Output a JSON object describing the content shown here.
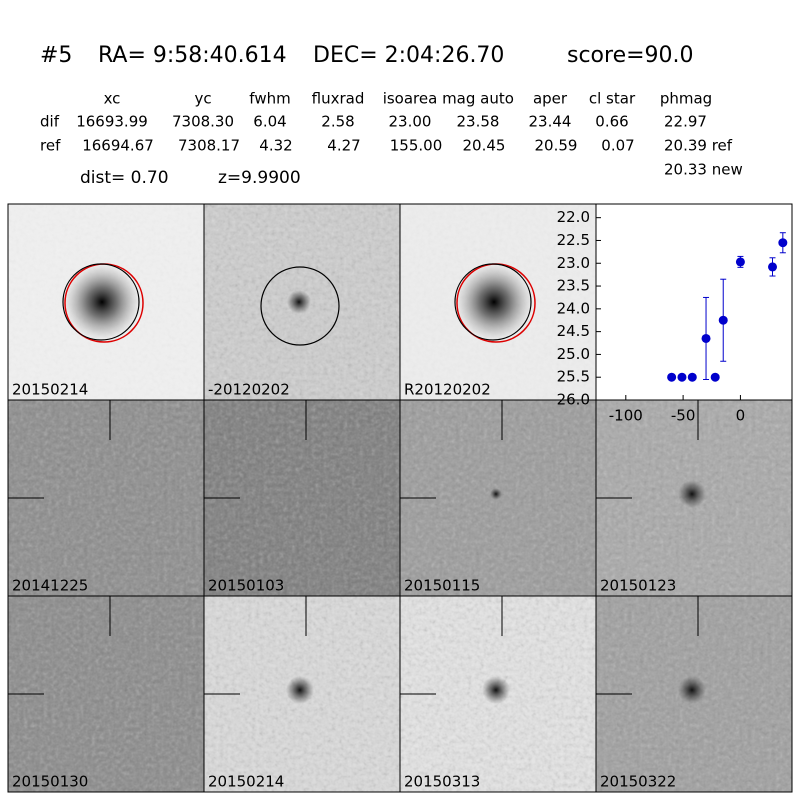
{
  "header": {
    "id": "#5",
    "ra": "RA= 9:58:40.614",
    "dec": "DEC= 2:04:26.70",
    "score": "score=90.0"
  },
  "table": {
    "columns": [
      "xc",
      "yc",
      "fwhm",
      "fluxrad",
      "isoarea",
      "mag auto",
      "aper",
      "cl star",
      "phmag"
    ],
    "rows": [
      [
        "dif",
        "16693.99",
        "7308.30",
        "6.04",
        "2.58",
        "23.00",
        "23.58",
        "23.44",
        "0.66",
        "22.97"
      ],
      [
        "ref",
        "16694.67",
        "7308.17",
        "4.32",
        "4.27",
        "155.00",
        "20.45",
        "20.59",
        "0.07",
        "20.39 ref"
      ]
    ],
    "extra": "20.33 new"
  },
  "dist": "dist=  0.70",
  "z": "z=9.9900",
  "panels": [
    {
      "label": "20150214"
    },
    {
      "label": "-20120202"
    },
    {
      "label": "R20120202"
    },
    {
      "label": "20141225"
    },
    {
      "label": "20150103"
    },
    {
      "label": "20150115"
    },
    {
      "label": "20150123"
    },
    {
      "label": "20150130"
    },
    {
      "label": "20150214",
      "color": "#ff0000"
    },
    {
      "label": "20150313"
    },
    {
      "label": "20150322"
    }
  ],
  "chart_data": {
    "type": "scatter",
    "color": "#0000cc",
    "y_inverted": true,
    "x": [
      -60,
      -51,
      -42,
      -30,
      -22,
      -15,
      0,
      28,
      37
    ],
    "values": [
      25.5,
      25.5,
      25.5,
      24.65,
      25.5,
      24.25,
      22.97,
      23.08,
      22.55
    ],
    "errors": [
      0.05,
      0.05,
      0.05,
      0.9,
      0.05,
      0.9,
      0.12,
      0.2,
      0.22
    ],
    "xlim": [
      -126,
      45
    ],
    "ylim": [
      21.7,
      26.0
    ],
    "xticks": [
      -100,
      -50,
      0
    ],
    "yticks": [
      {
        "value": 22,
        "label": "22.0"
      },
      {
        "value": 22.5,
        "label": "22.5"
      },
      {
        "value": 23,
        "label": "23.0"
      },
      {
        "value": 23.5,
        "label": "23.5"
      },
      {
        "value": 24,
        "label": "24.0"
      },
      {
        "value": 24.5,
        "label": "24.5"
      },
      {
        "value": 25,
        "label": "25.0"
      },
      {
        "value": 25.5,
        "label": "25.5"
      },
      {
        "value": 26,
        "label": "26.0"
      }
    ]
  }
}
